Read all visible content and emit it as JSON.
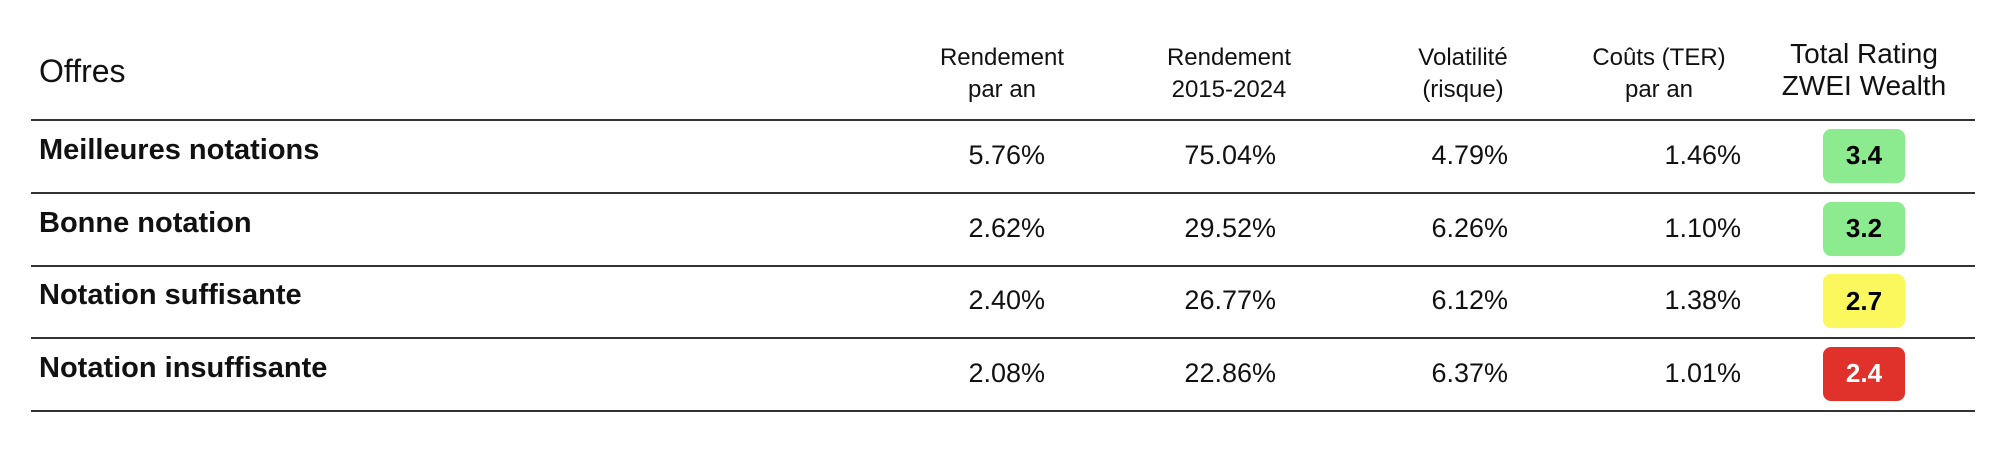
{
  "table": {
    "headers": [
      [
        "Offres"
      ],
      [
        "Rendement",
        "par an"
      ],
      [
        "Rendement",
        "2015-2024"
      ],
      [
        "Volatilité",
        "(risque)"
      ],
      [
        "Coûts (TER)",
        "par an"
      ],
      [
        "Total Rating",
        "ZWEI Wealth"
      ]
    ],
    "rows": [
      {
        "label": "Meilleures notations",
        "cells": [
          "5.76%",
          "75.04%",
          "4.79%",
          "1.46%"
        ],
        "rating": {
          "value": "3.4",
          "color": "#8deb8f",
          "text_color": "#000000"
        }
      },
      {
        "label": "Bonne notation",
        "cells": [
          "2.62%",
          "29.52%",
          "6.26%",
          "1.10%"
        ],
        "rating": {
          "value": "3.2",
          "color": "#8deb8f",
          "text_color": "#000000"
        }
      },
      {
        "label": "Notation suffisante",
        "cells": [
          "2.40%",
          "26.77%",
          "6.12%",
          "1.38%"
        ],
        "rating": {
          "value": "2.7",
          "color": "#faf85c",
          "text_color": "#000000"
        }
      },
      {
        "label": "Notation insuffisante",
        "cells": [
          "2.08%",
          "22.86%",
          "6.37%",
          "1.01%"
        ],
        "rating": {
          "value": "2.4",
          "color": "#e1312b",
          "text_color": "#ffffff"
        }
      }
    ]
  }
}
